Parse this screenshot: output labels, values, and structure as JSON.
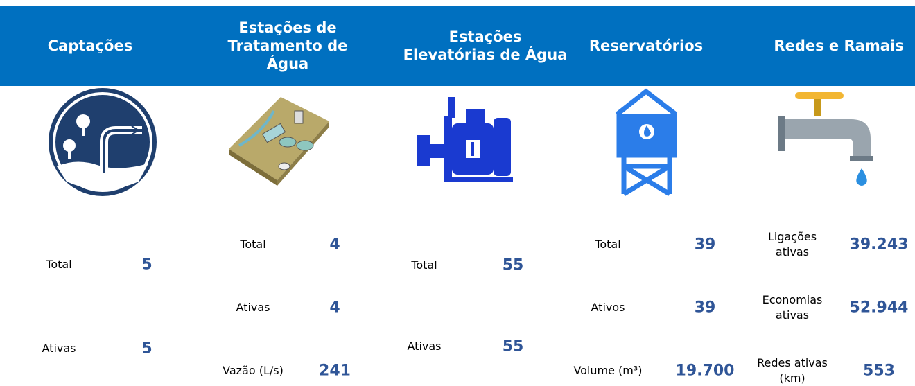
{
  "columns": [
    {
      "title": "Captações",
      "items": [
        {
          "label": "Total",
          "value": "5"
        },
        {
          "label": "Ativas",
          "value": "5"
        }
      ]
    },
    {
      "title": "Estações de Tratamento de Água",
      "items": [
        {
          "label": "Total",
          "value": "4"
        },
        {
          "label": "Ativas",
          "value": "4"
        },
        {
          "label": "Vazão (L/s)",
          "value": "241"
        }
      ]
    },
    {
      "title": "Estações Elevatórias de Água",
      "items": [
        {
          "label": "Total",
          "value": "55"
        },
        {
          "label": "Ativas",
          "value": "55"
        }
      ]
    },
    {
      "title": "Reservatórios",
      "items": [
        {
          "label": "Total",
          "value": "39"
        },
        {
          "label": "Ativos",
          "value": "39"
        },
        {
          "label": "Volume (m³)",
          "value": "19.700"
        }
      ]
    },
    {
      "title": "Redes e Ramais",
      "items": [
        {
          "label": "Ligações ativas",
          "value": "39.243"
        },
        {
          "label": "Economias ativas",
          "value": "52.944"
        },
        {
          "label": "Redes ativas (km)",
          "value": "553"
        }
      ]
    }
  ]
}
